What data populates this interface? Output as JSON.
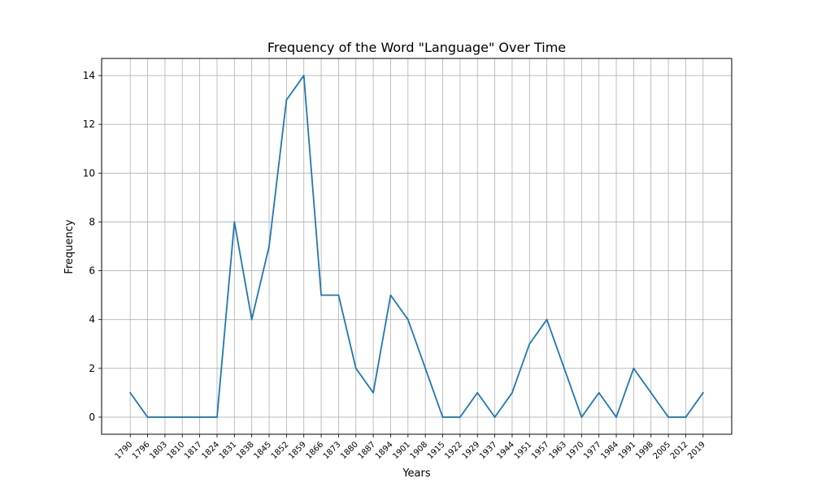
{
  "chart_data": {
    "type": "line",
    "title": "Frequency of the Word \"Language\" Over Time",
    "xlabel": "Years",
    "ylabel": "Frequency",
    "ylim": [
      -0.7,
      14.7
    ],
    "yticks": [
      0,
      2,
      4,
      6,
      8,
      10,
      12,
      14
    ],
    "grid": true,
    "line_color": "#1f77b4",
    "categories": [
      "1790",
      "1796",
      "1803",
      "1810",
      "1817",
      "1824",
      "1831",
      "1838",
      "1845",
      "1852",
      "1859",
      "1866",
      "1873",
      "1880",
      "1887",
      "1894",
      "1901",
      "1908",
      "1915",
      "1922",
      "1929",
      "1937",
      "1944",
      "1951",
      "1957",
      "1963",
      "1970",
      "1977",
      "1984",
      "1991",
      "1998",
      "2005",
      "2012",
      "2019"
    ],
    "values": [
      1,
      0,
      0,
      0,
      0,
      0,
      8,
      4,
      7,
      13,
      14,
      5,
      5,
      2,
      1,
      5,
      4,
      2,
      0,
      0,
      1,
      0,
      1,
      3,
      4,
      2,
      0,
      1,
      0,
      2,
      1,
      0,
      0,
      1
    ]
  }
}
